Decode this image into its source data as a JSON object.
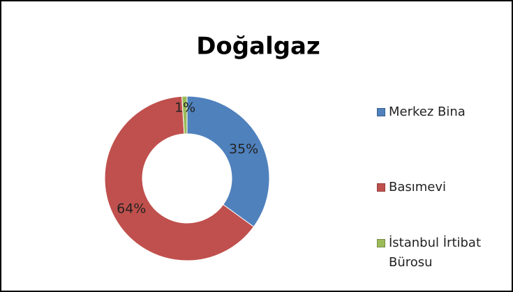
{
  "chart_data": {
    "type": "donut",
    "title": "Doğalgaz",
    "categories": [
      "Merkez Bina",
      "Basımevi",
      "İstanbul İrtibat Bürosu"
    ],
    "values": [
      35,
      64,
      1
    ],
    "value_labels": [
      "35%",
      "64%",
      "1%"
    ],
    "colors": [
      "#4f81bd",
      "#c0504d",
      "#9bbb59"
    ],
    "legend": "right"
  }
}
